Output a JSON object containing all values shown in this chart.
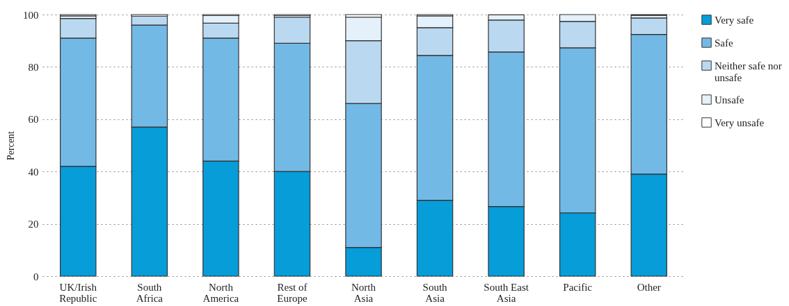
{
  "chart_data": {
    "type": "bar",
    "stacked": true,
    "ylabel": "Percent",
    "categories": [
      "UK/Irish Republic",
      "South Africa",
      "North America",
      "Rest of Europe",
      "North Asia",
      "South Asia",
      "South East Asia",
      "Pacific",
      "Other"
    ],
    "series": [
      {
        "name": "Very safe",
        "color": "#069dd9",
        "values": [
          42,
          57,
          44,
          40,
          11,
          29,
          26.6,
          24.2,
          39
        ]
      },
      {
        "name": "Safe",
        "color": "#72b9e6",
        "values": [
          49,
          39,
          47,
          49,
          55,
          55.4,
          59.1,
          63.1,
          53.4
        ]
      },
      {
        "name": "Neither safe nor unsafe",
        "color": "#bad9f1",
        "values": [
          7.5,
          3.4,
          5.7,
          10,
          24,
          10.6,
          12.2,
          10.1,
          6.3
        ]
      },
      {
        "name": "Unsafe",
        "color": "#e4f1fa",
        "values": [
          1,
          null,
          2.9,
          0.6,
          9,
          4.5,
          2,
          2.6,
          1
        ]
      },
      {
        "name": "Very unsafe",
        "color": "#ffffff",
        "values": [
          0.5,
          0.6,
          0.4,
          0.4,
          1,
          0.5,
          null,
          null,
          0.3
        ]
      }
    ],
    "ylim": [
      0,
      100
    ],
    "yticks": [
      0,
      20,
      40,
      60,
      80,
      100
    ],
    "grid": "y",
    "legend": "top right"
  }
}
